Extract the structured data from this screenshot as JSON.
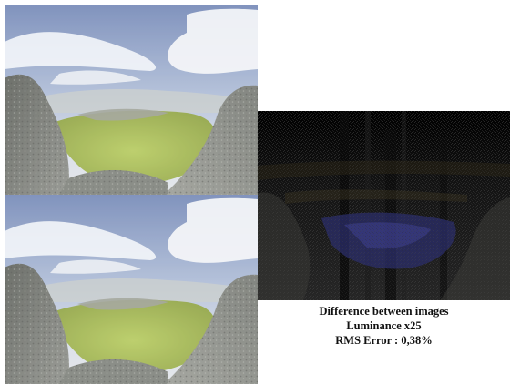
{
  "captions": {
    "line1": "Difference between images",
    "line2": "Luminance x25",
    "line3": "RMS Error : 0,38%"
  },
  "colors": {
    "sky_top": "#6f86b8",
    "sky_haze": "#c9d3e4",
    "clouds": "#f2f4f8",
    "grass": "#9fb84a",
    "rock": "#6b6f66",
    "diff_background": "#050505",
    "diff_blue": "#2a2f6a"
  }
}
